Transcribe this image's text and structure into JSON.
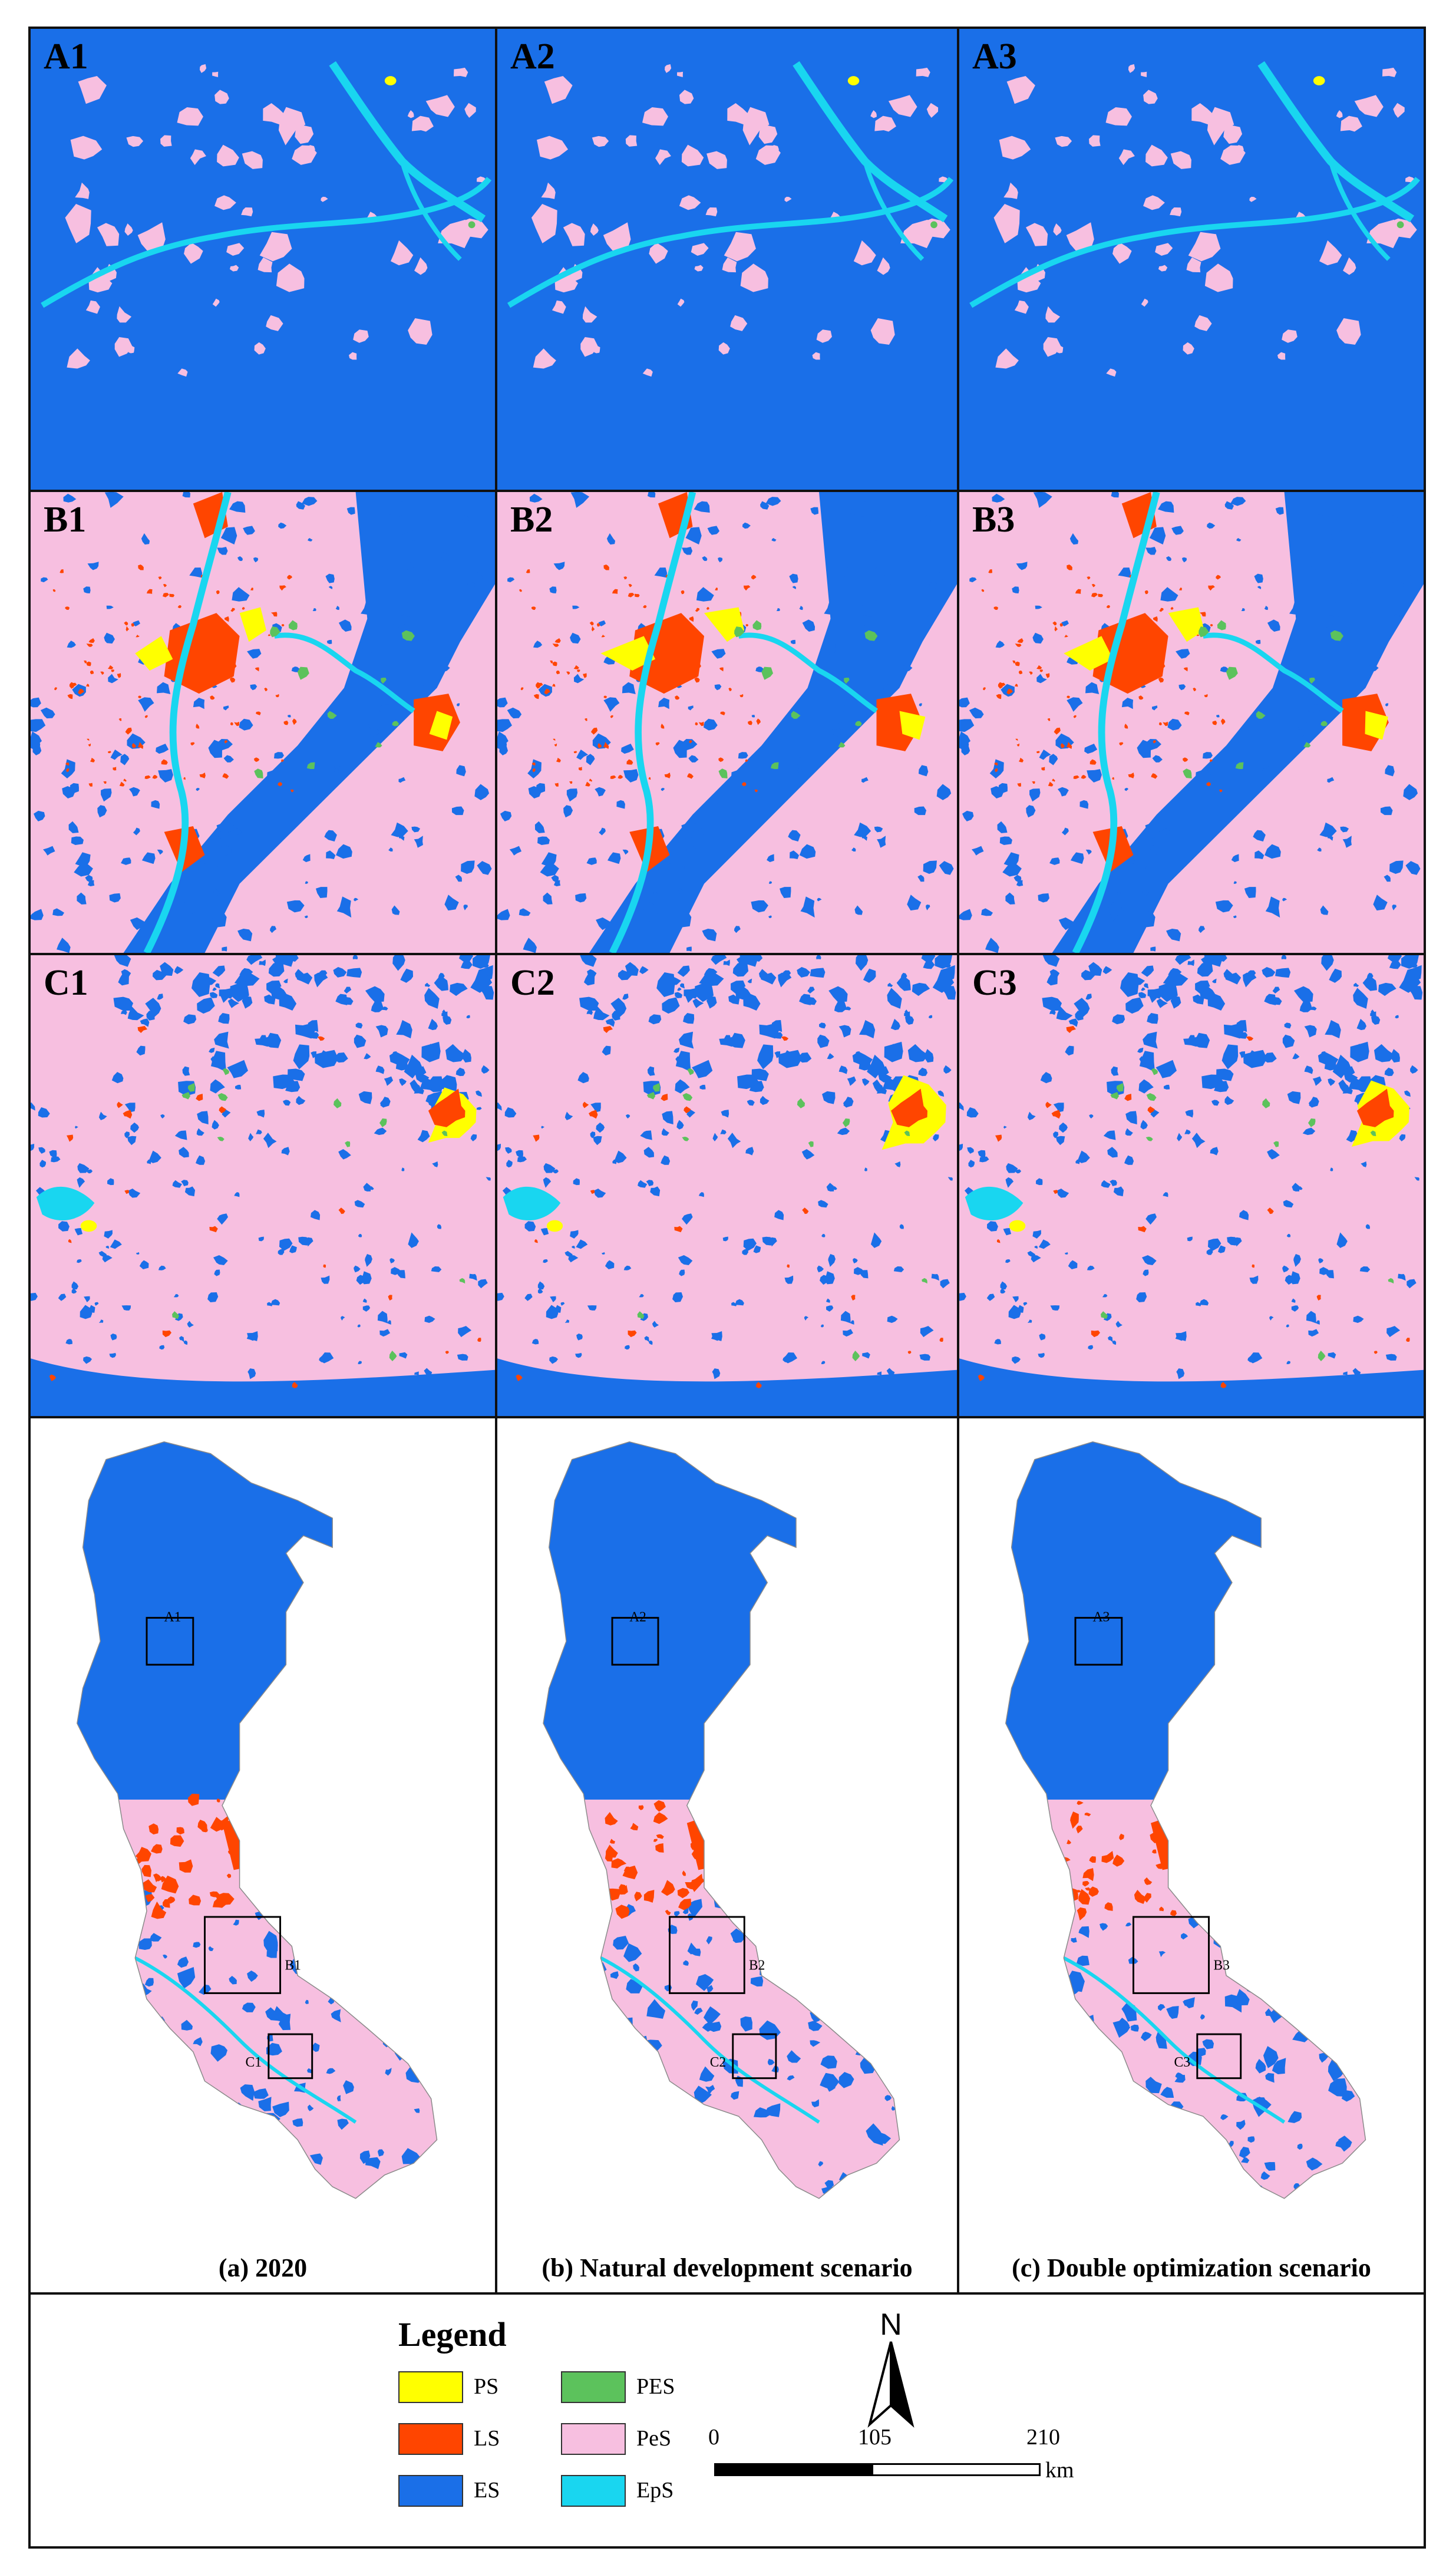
{
  "palette": {
    "PS": "#ffff00",
    "LS": "#ff4500",
    "ES": "#1a6fe8",
    "PES": "#5cc25c",
    "PeS": "#f7bfe0",
    "EpS": "#19d6f0"
  },
  "panels": {
    "A1": "A1",
    "A2": "A2",
    "A3": "A3",
    "B1": "B1",
    "B2": "B2",
    "B3": "B3",
    "C1": "C1",
    "C2": "C2",
    "C3": "C3"
  },
  "overview": [
    {
      "caption": "(a) 2020",
      "labels": {
        "a": "A1",
        "b": "B1",
        "c": "C1"
      }
    },
    {
      "caption": "(b) Natural development scenario",
      "labels": {
        "a": "A2",
        "b": "B2",
        "c": "C2"
      }
    },
    {
      "caption": "(c) Double optimization scenario",
      "labels": {
        "a": "A3",
        "b": "B3",
        "c": "C3"
      }
    }
  ],
  "legend": {
    "title": "Legend",
    "items": [
      {
        "code": "PS",
        "color": "#ffff00"
      },
      {
        "code": "PES",
        "color": "#5cc25c"
      },
      {
        "code": "LS",
        "color": "#ff4500"
      },
      {
        "code": "PeS",
        "color": "#f7bfe0"
      },
      {
        "code": "ES",
        "color": "#1a6fe8"
      },
      {
        "code": "EpS",
        "color": "#19d6f0"
      }
    ]
  },
  "north_arrow": "N",
  "scale_bar": {
    "ticks": [
      "0",
      "105",
      "210"
    ],
    "unit": "km"
  }
}
